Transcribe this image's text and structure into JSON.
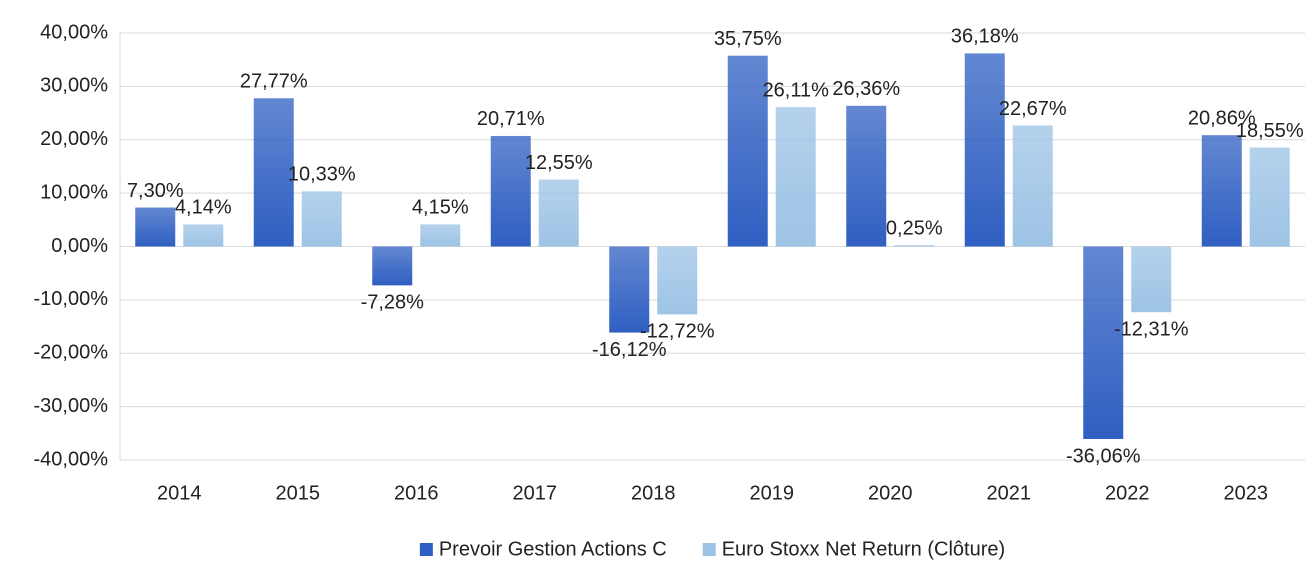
{
  "chart_data": {
    "type": "bar",
    "categories": [
      "2014",
      "2015",
      "2016",
      "2017",
      "2018",
      "2019",
      "2020",
      "2021",
      "2022",
      "2023"
    ],
    "series": [
      {
        "name": "Prevoir Gestion Actions C",
        "color": "#2f5fc2",
        "values": [
          7.3,
          27.77,
          -7.28,
          20.71,
          -16.12,
          35.75,
          26.36,
          36.18,
          -36.06,
          20.86
        ],
        "value_labels": [
          "7,30%",
          "27,77%",
          "-7,28%",
          "20,71%",
          "-16,12%",
          "35,75%",
          "26,36%",
          "36,18%",
          "-36,06%",
          "20,86%"
        ]
      },
      {
        "name": "Euro Stoxx Net Return (Clôture)",
        "color": "#9dc3e6",
        "values": [
          4.14,
          10.33,
          4.15,
          12.55,
          -12.72,
          26.11,
          0.25,
          22.67,
          -12.31,
          18.55
        ],
        "value_labels": [
          "4,14%",
          "10,33%",
          "4,15%",
          "12,55%",
          "-12,72%",
          "26,11%",
          "0,25%",
          "22,67%",
          "-12,31%",
          "18,55%"
        ]
      }
    ],
    "ylim": [
      -40,
      40
    ],
    "yticks": [
      {
        "value": -40,
        "label": "-40,00%"
      },
      {
        "value": -30,
        "label": "-30,00%"
      },
      {
        "value": -20,
        "label": "-20,00%"
      },
      {
        "value": -10,
        "label": "-10,00%"
      },
      {
        "value": 0,
        "label": "0,00%"
      },
      {
        "value": 10,
        "label": "10,00%"
      },
      {
        "value": 20,
        "label": "20,00%"
      },
      {
        "value": 30,
        "label": "30,00%"
      },
      {
        "value": 40,
        "label": "40,00%"
      }
    ],
    "grid": true,
    "legend": "bottom"
  }
}
